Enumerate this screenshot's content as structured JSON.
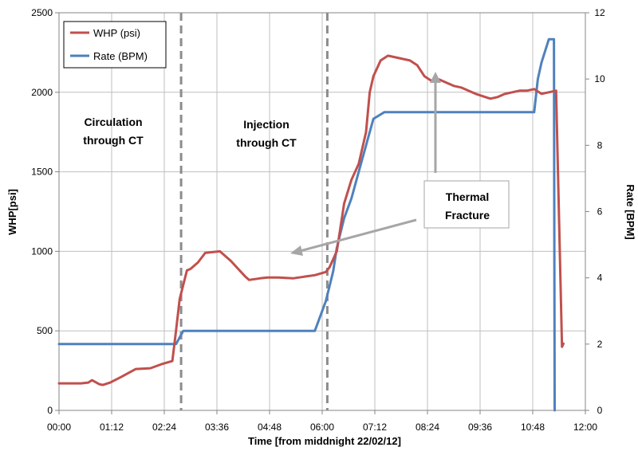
{
  "chart_data": {
    "type": "line",
    "xlabel": "Time [from middnight 22/02/12]",
    "ylabel": "WHP[psi]",
    "y2label": "Rate [BPM]",
    "xlim_minutes": [
      0,
      720
    ],
    "ylim": [
      0,
      2500
    ],
    "y2lim": [
      0,
      12
    ],
    "x_tick_labels": [
      "00:00",
      "01:12",
      "02:24",
      "03:36",
      "04:48",
      "06:00",
      "07:12",
      "08:24",
      "09:36",
      "10:48",
      "12:00"
    ],
    "y_tick_labels": [
      "0",
      "500",
      "1000",
      "1500",
      "2000",
      "2500"
    ],
    "y2_tick_labels": [
      "0",
      "2",
      "4",
      "6",
      "8",
      "10",
      "12"
    ],
    "grid": true,
    "legend": {
      "position": "top-left",
      "entries": [
        "WHP (psi)",
        "Rate (BPM)"
      ]
    },
    "colors": {
      "whp": "#C0504D",
      "rate": "#4F81BD",
      "grid": "#BFBFBF",
      "dashed": "#8C8C8C",
      "arrow": "#A6A6A6"
    },
    "series": [
      {
        "name": "WHP (psi)",
        "axis": "left",
        "x_minutes": [
          0,
          30,
          40,
          45,
          55,
          60,
          70,
          85,
          105,
          125,
          140,
          155,
          160,
          165,
          175,
          180,
          185,
          190,
          200,
          220,
          235,
          245,
          255,
          260,
          275,
          285,
          300,
          320,
          335,
          350,
          365,
          370,
          380,
          385,
          390,
          400,
          410,
          420,
          425,
          430,
          440,
          450,
          460,
          470,
          480,
          490,
          500,
          510,
          520,
          530,
          540,
          550,
          560,
          570,
          590,
          600,
          610,
          620,
          630,
          640,
          650,
          660,
          670,
          680,
          688,
          690
        ],
        "values": [
          170,
          170,
          175,
          190,
          165,
          160,
          175,
          210,
          260,
          265,
          290,
          310,
          500,
          700,
          880,
          890,
          910,
          930,
          990,
          1000,
          940,
          890,
          840,
          820,
          830,
          835,
          835,
          830,
          840,
          850,
          870,
          900,
          1000,
          1150,
          1300,
          1450,
          1550,
          1750,
          2000,
          2100,
          2200,
          2230,
          2220,
          2210,
          2200,
          2170,
          2100,
          2070,
          2080,
          2060,
          2040,
          2030,
          2010,
          1990,
          1960,
          1970,
          1990,
          2000,
          2010,
          2010,
          2020,
          1990,
          2000,
          2010,
          400,
          420
        ]
      },
      {
        "name": "Rate (BPM)",
        "axis": "right",
        "x_minutes": [
          0,
          160,
          170,
          340,
          350,
          365,
          375,
          380,
          390,
          400,
          410,
          430,
          445,
          460,
          480,
          500,
          520,
          540,
          570,
          600,
          620,
          640,
          650,
          655,
          660,
          670,
          675,
          677,
          678
        ],
        "values": [
          2.0,
          2.0,
          2.4,
          2.4,
          2.4,
          3.3,
          4.2,
          4.9,
          5.8,
          6.4,
          7.2,
          8.8,
          9.0,
          9.0,
          9.0,
          9.0,
          9.0,
          9.0,
          9.0,
          9.0,
          9.0,
          9.0,
          9.0,
          10.0,
          10.5,
          11.2,
          11.2,
          11.2,
          0.0
        ]
      }
    ],
    "vertical_dashed_lines_minutes": [
      167,
      367
    ],
    "annotations": [
      {
        "id": "circulation",
        "lines": [
          "Circulation",
          "through  CT"
        ]
      },
      {
        "id": "injection",
        "lines": [
          "Injection",
          "through  CT"
        ]
      },
      {
        "id": "thermal",
        "lines": [
          "Thermal",
          "Fracture"
        ]
      }
    ]
  }
}
